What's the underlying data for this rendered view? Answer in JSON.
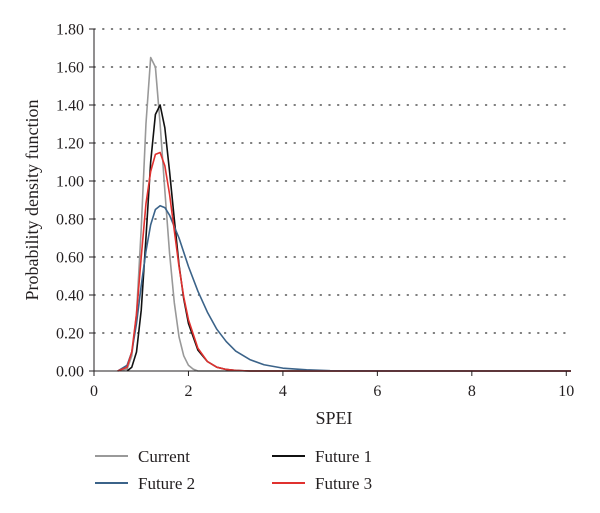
{
  "chart_data": {
    "type": "line",
    "xlabel": "SPEI",
    "ylabel": "Probability density function",
    "xlim": [
      0,
      10.1
    ],
    "ylim": [
      0,
      1.8
    ],
    "xticks": [
      0,
      2,
      4,
      6,
      8,
      10
    ],
    "xtick_labels": [
      "0",
      "2",
      "4",
      "6",
      "8",
      "10"
    ],
    "yticks": [
      0,
      0.2,
      0.4,
      0.6,
      0.8,
      1.0,
      1.2,
      1.4,
      1.6,
      1.8
    ],
    "ytick_labels": [
      "0.00",
      "0.20",
      "0.40",
      "0.60",
      "0.80",
      "1.00",
      "1.20",
      "1.40",
      "1.60",
      "1.80"
    ],
    "grid": "horizontal dotted",
    "legend_position": "bottom",
    "series": [
      {
        "name": "Current",
        "color": "#999999",
        "x": [
          0.5,
          0.7,
          0.8,
          0.9,
          1.0,
          1.1,
          1.2,
          1.3,
          1.4,
          1.5,
          1.6,
          1.7,
          1.8,
          1.9,
          2.0,
          2.1,
          2.2,
          2.4,
          3.0,
          10.1
        ],
        "y": [
          0.0,
          0.01,
          0.08,
          0.3,
          0.75,
          1.3,
          1.65,
          1.6,
          1.3,
          0.95,
          0.62,
          0.36,
          0.18,
          0.08,
          0.03,
          0.01,
          0.0,
          0.0,
          0.0,
          0.0
        ]
      },
      {
        "name": "Future 1",
        "color": "#111111",
        "x": [
          0.7,
          0.8,
          0.9,
          1.0,
          1.1,
          1.2,
          1.3,
          1.4,
          1.5,
          1.6,
          1.7,
          1.8,
          1.9,
          2.0,
          2.2,
          2.4,
          2.6,
          2.8,
          3.0,
          3.3,
          10.1
        ],
        "y": [
          0.0,
          0.02,
          0.1,
          0.32,
          0.7,
          1.1,
          1.35,
          1.4,
          1.28,
          1.05,
          0.8,
          0.56,
          0.38,
          0.25,
          0.11,
          0.05,
          0.02,
          0.008,
          0.003,
          0.0,
          0.0
        ]
      },
      {
        "name": "Future 2",
        "color": "#3b6389",
        "x": [
          0.5,
          0.7,
          0.8,
          0.9,
          1.0,
          1.1,
          1.2,
          1.3,
          1.4,
          1.5,
          1.6,
          1.8,
          2.0,
          2.2,
          2.4,
          2.6,
          2.8,
          3.0,
          3.3,
          3.6,
          4.0,
          4.5,
          5.0,
          5.5,
          6.0,
          7.0,
          10.1
        ],
        "y": [
          0.0,
          0.03,
          0.1,
          0.25,
          0.45,
          0.63,
          0.77,
          0.85,
          0.87,
          0.86,
          0.82,
          0.7,
          0.55,
          0.42,
          0.31,
          0.22,
          0.155,
          0.105,
          0.06,
          0.033,
          0.015,
          0.006,
          0.002,
          0.0008,
          0.0003,
          0.0,
          0.0
        ]
      },
      {
        "name": "Future 3",
        "color": "#e0312f",
        "x": [
          0.5,
          0.7,
          0.8,
          0.9,
          1.0,
          1.1,
          1.2,
          1.3,
          1.4,
          1.5,
          1.6,
          1.7,
          1.8,
          1.9,
          2.0,
          2.2,
          2.4,
          2.6,
          2.8,
          3.0,
          3.3,
          10.1
        ],
        "y": [
          0.0,
          0.02,
          0.1,
          0.3,
          0.6,
          0.88,
          1.05,
          1.14,
          1.15,
          1.08,
          0.93,
          0.74,
          0.55,
          0.39,
          0.27,
          0.12,
          0.05,
          0.02,
          0.008,
          0.003,
          0.0,
          0.0
        ]
      }
    ],
    "legend": [
      {
        "label": "Current",
        "color": "#999999"
      },
      {
        "label": "Future 1",
        "color": "#111111"
      },
      {
        "label": "Future 2",
        "color": "#3b6389"
      },
      {
        "label": "Future 3",
        "color": "#e0312f"
      }
    ]
  }
}
